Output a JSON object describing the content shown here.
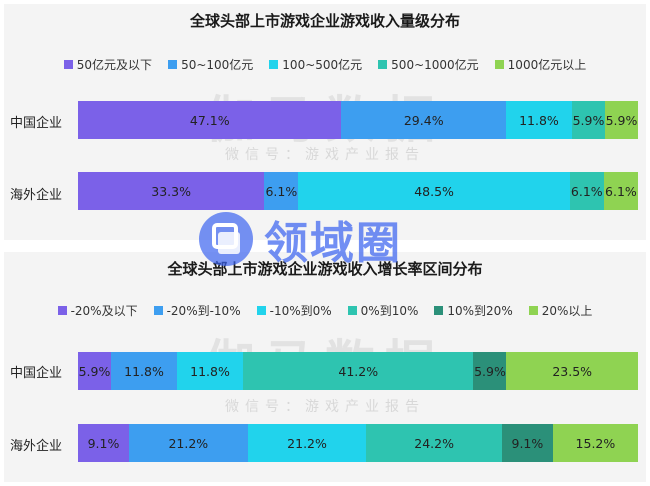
{
  "colors": {
    "violet": "#7b61e8",
    "blue": "#3d9ef0",
    "cyan": "#21d3ec",
    "teal": "#2ec4b0",
    "darkteal": "#2b9079",
    "green": "#8fd352",
    "panel_bg": "#f4f4f4"
  },
  "watermark": {
    "big": "伽马数据",
    "small": "微信号：游戏产业报告"
  },
  "logo": {
    "text": "领域圈",
    "icon": "logo-square-icon"
  },
  "chart_data": [
    {
      "type": "bar",
      "orientation": "horizontal",
      "stacked": true,
      "title": "全球头部上市游戏企业游戏收入量级分布",
      "legend_position": "top",
      "categories": [
        "中国企业",
        "海外企业"
      ],
      "series": [
        {
          "name": "50亿元及以下",
          "color": "#7b61e8",
          "values": [
            47.1,
            33.3
          ],
          "labels": [
            "47.1%",
            "33.3%"
          ]
        },
        {
          "name": "50~100亿元",
          "color": "#3d9ef0",
          "values": [
            29.4,
            6.1
          ],
          "labels": [
            "29.4%",
            "6.1%"
          ]
        },
        {
          "name": "100~500亿元",
          "color": "#21d3ec",
          "values": [
            11.8,
            48.5
          ],
          "labels": [
            "11.8%",
            "48.5%"
          ]
        },
        {
          "name": "500~1000亿元",
          "color": "#2ec4b0",
          "values": [
            5.9,
            6.1
          ],
          "labels": [
            "5.9%",
            "6.1%"
          ]
        },
        {
          "name": "1000亿元以上",
          "color": "#8fd352",
          "values": [
            5.9,
            6.1
          ],
          "labels": [
            "5.9%",
            "6.1%"
          ]
        }
      ]
    },
    {
      "type": "bar",
      "orientation": "horizontal",
      "stacked": true,
      "title": "全球头部上市游戏企业游戏收入增长率区间分布",
      "legend_position": "top",
      "categories": [
        "中国企业",
        "海外企业"
      ],
      "series": [
        {
          "name": "-20%及以下",
          "color": "#7b61e8",
          "values": [
            5.9,
            9.1
          ],
          "labels": [
            "5.9%",
            "9.1%"
          ]
        },
        {
          "name": "-20%到-10%",
          "color": "#3d9ef0",
          "values": [
            11.8,
            21.2
          ],
          "labels": [
            "11.8%",
            "21.2%"
          ]
        },
        {
          "name": "-10%到0%",
          "color": "#21d3ec",
          "values": [
            11.8,
            21.2
          ],
          "labels": [
            "11.8%",
            "21.2%"
          ]
        },
        {
          "name": "0%到10%",
          "color": "#2ec4b0",
          "values": [
            41.2,
            24.2
          ],
          "labels": [
            "41.2%",
            "24.2%"
          ]
        },
        {
          "name": "10%到20%",
          "color": "#2b9079",
          "values": [
            5.9,
            9.1
          ],
          "labels": [
            "5.9%",
            "9.1%"
          ]
        },
        {
          "name": "20%以上",
          "color": "#8fd352",
          "values": [
            23.5,
            15.2
          ],
          "labels": [
            "23.5%",
            "15.2%"
          ]
        }
      ]
    }
  ]
}
